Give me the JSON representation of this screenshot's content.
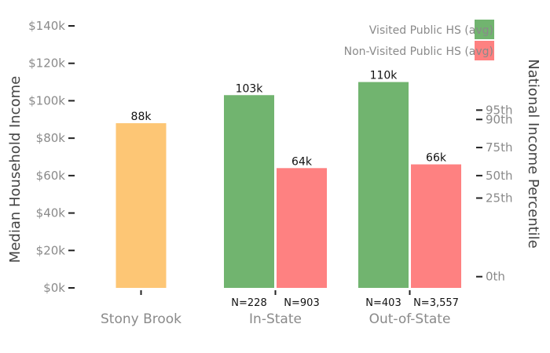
{
  "chart_data": {
    "type": "bar",
    "categories": [
      "Stony Brook",
      "In-State",
      "Out-of-State"
    ],
    "series": [
      {
        "name": "Stony Brook",
        "color": "#fdc675",
        "values": [
          88000,
          null,
          null
        ],
        "value_labels": [
          "88k",
          null,
          null
        ],
        "n_labels": [
          null,
          null,
          null
        ]
      },
      {
        "name": "Visited Public HS (avg)",
        "color": "#71b46f",
        "values": [
          null,
          103000,
          110000
        ],
        "value_labels": [
          null,
          "103k",
          "110k"
        ],
        "n_labels": [
          null,
          "N=228",
          "N=403"
        ]
      },
      {
        "name": "Non-Visited Public HS (avg)",
        "color": "#fe8181",
        "values": [
          null,
          64000,
          66000
        ],
        "value_labels": [
          null,
          "64k",
          "66k"
        ],
        "n_labels": [
          null,
          "N=903",
          "N=3,557"
        ]
      }
    ],
    "ylabel": "Median Household Income",
    "ylim": [
      0,
      140000
    ],
    "yticks": [
      {
        "value": 0,
        "label": "$0k"
      },
      {
        "value": 20000,
        "label": "$20k"
      },
      {
        "value": 40000,
        "label": "$40k"
      },
      {
        "value": 60000,
        "label": "$60k"
      },
      {
        "value": 80000,
        "label": "$80k"
      },
      {
        "value": 100000,
        "label": "$100k"
      },
      {
        "value": 120000,
        "label": "$120k"
      },
      {
        "value": 140000,
        "label": "$140k"
      }
    ],
    "y2label": "National Income Percentile",
    "y2ticks": [
      {
        "value": 95000,
        "label": "95th"
      },
      {
        "value": 90000,
        "label": "90th"
      },
      {
        "value": 75000,
        "label": "75th"
      },
      {
        "value": 60000,
        "label": "50th"
      },
      {
        "value": 48000,
        "label": "25th"
      },
      {
        "value": 6000,
        "label": "0th"
      }
    ],
    "legend": {
      "placement": "top-right",
      "entries": [
        {
          "label": "Visited Public HS (avg)",
          "color": "#71b46f"
        },
        {
          "label": "Non-Visited Public HS (avg)",
          "color": "#fe8181"
        }
      ]
    },
    "grid": false
  }
}
